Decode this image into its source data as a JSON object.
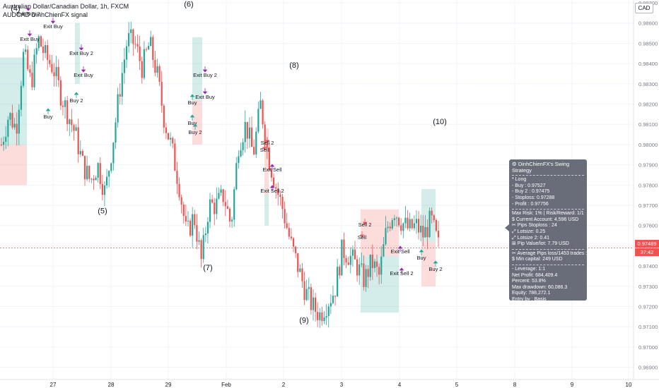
{
  "header": {
    "title": "Australian Dollar/Canadian Dollar, 1h, FXCM",
    "indicator": "AUDCAD DinhChienFX signal",
    "currency": "CAD"
  },
  "chart_data": {
    "type": "candlestick",
    "y_range": [
      0.9685,
      0.987
    ],
    "y_ticks": [
      "0.98700",
      "0.98600",
      "0.98500",
      "0.98400",
      "0.98300",
      "0.98200",
      "0.98100",
      "0.98000",
      "0.97900",
      "0.97800",
      "0.97700",
      "0.97600",
      "0.97500",
      "0.97400",
      "0.97300",
      "0.97200",
      "0.97100",
      "0.97000",
      "0.96900"
    ],
    "x_ticks": [
      "27",
      "28",
      "29",
      "Feb",
      "2",
      "3",
      "4",
      "5",
      "8",
      "9",
      "10"
    ],
    "current_price": "0.97489",
    "countdown": "37:42",
    "ohlc_anchor_prices": [
      0.98,
      0.9815,
      0.9808,
      0.9845,
      0.983,
      0.9852,
      0.9843,
      0.9838,
      0.9825,
      0.9815,
      0.9805,
      0.979,
      0.9782,
      0.979,
      0.9776,
      0.98,
      0.9828,
      0.9852,
      0.985,
      0.9838,
      0.985,
      0.9835,
      0.9812,
      0.9798,
      0.978,
      0.9755,
      0.9765,
      0.9742,
      0.977,
      0.977,
      0.9775,
      0.976,
      0.98,
      0.981,
      0.9795,
      0.982,
      0.9795,
      0.978,
      0.9768,
      0.9752,
      0.974,
      0.9728,
      0.972,
      0.9716,
      0.9722,
      0.9728,
      0.9748,
      0.9745,
      0.974,
      0.9733,
      0.9742,
      0.9735,
      0.9758,
      0.9768,
      0.9762,
      0.9758,
      0.976,
      0.9755,
      0.9763,
      0.975
    ],
    "wave_labels": [
      {
        "text": "(5)",
        "price": 0.9766
      },
      {
        "text": "(6)",
        "price": 0.9868
      },
      {
        "text": "(7)",
        "price": 0.9738
      },
      {
        "text": "(8)",
        "price": 0.9838
      },
      {
        "text": "(9)",
        "price": 0.9712
      },
      {
        "text": "(10)",
        "price": 0.981
      },
      {
        "text": "(4)",
        "price": 0.9866
      }
    ],
    "signal_labels": [
      "Exit Buy 2",
      "Exit Buy",
      "Exit Buy",
      "Exit Buy 2",
      "Exit Buy",
      "Buy",
      "Buy 2",
      "Buy",
      "Exit Buy 2",
      "Exit Buy",
      "Buy",
      "Buy 2",
      "Sell 2",
      "Sell",
      "Exit Sell",
      "Exit Sell 2",
      "Sell 2",
      "Sell",
      "Exit Sell",
      "Exit Sell 2",
      "Buy",
      "Buy 2"
    ]
  },
  "info_panel": {
    "title": "DinhChienFX's Swing Strategy",
    "lines_a": [
      "* Long",
      "- Buy   : 0.97527",
      "- Buy 2  : 0.97475",
      "- Stoploss: 0.97288",
      "- Profit  : 0.97756"
    ],
    "lines_b": [
      "Max Risk: 1% | Risk/Reward: 1/1",
      "$ Current Account: 4,596 USD",
      "✂ Pips Stoploss : 24",
      "⤢ Lotsize: 0.25",
      "⤢ Lotsize 2: 0.41",
      "⊞ Pip Value/lot: 7.79 USD"
    ],
    "lines_c": [
      "✂ Average Pips loss/1453 trades : 32",
      "$ Min capital: 249 USD"
    ],
    "lines_d": [
      "- Leverage: 1:1",
      "Net Profit: 684,409.4",
      "Percent: 53.8%",
      "Max drawdown: 60,086.3",
      "Equity: 788,272.1",
      "Entry by : Basis"
    ]
  },
  "colors": {
    "up": "#26a69a",
    "down": "#ef5350",
    "exit": "#9c27b0",
    "grid": "#f0f3fa",
    "price_line": "#ef5350"
  }
}
